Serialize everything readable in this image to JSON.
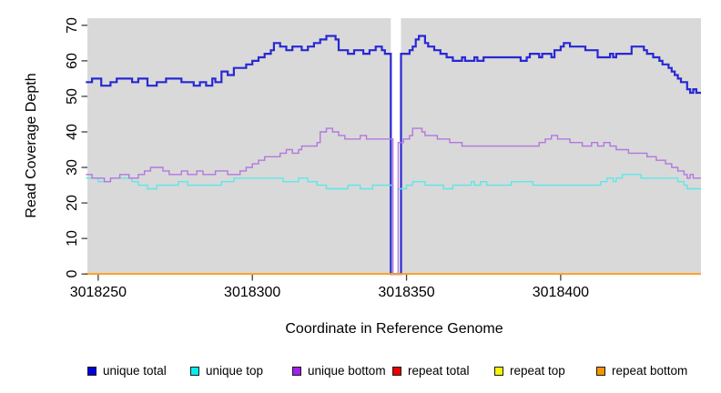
{
  "figure": {
    "background_color": "#ffffff",
    "plot_background_color": "#d9d9d9",
    "masked_region_color": "#ffffff",
    "tick_color": "#404040"
  },
  "legend": [
    {
      "label": "unique total",
      "swatch_color": "#0000dd",
      "line_color": "#2828d4"
    },
    {
      "label": "unique top",
      "swatch_color": "#00eeee",
      "line_color": "#5ce8e8"
    },
    {
      "label": "unique bottom",
      "swatch_color": "#a020f0",
      "line_color": "#b278de"
    },
    {
      "label": "repeat total",
      "swatch_color": "#ee0000",
      "line_color": "#dd0000"
    },
    {
      "label": "repeat top",
      "swatch_color": "#f5f500",
      "line_color": "#f0f000"
    },
    {
      "label": "repeat bottom",
      "swatch_color": "#f59600",
      "line_color": "#ffa024"
    }
  ],
  "chart_data": {
    "type": "line",
    "subtype": "step-coverage",
    "title": "",
    "xlabel": "Coordinate in Reference Genome",
    "ylabel": "Read Coverage Depth",
    "x_range": [
      3018246.5,
      3018445.5
    ],
    "ylim": [
      0,
      72
    ],
    "grid": false,
    "legend_position": "bottom",
    "plot_background": "#d9d9d9",
    "masked_region": {
      "start": 3018344.9,
      "end": 3018348.2,
      "color": "#ffffff"
    },
    "x_ticks": [
      {
        "value": 3018250,
        "label": "3018250"
      },
      {
        "value": 3018300,
        "label": "3018300"
      },
      {
        "value": 3018350,
        "label": "3018350"
      },
      {
        "value": 3018400,
        "label": "3018400"
      }
    ],
    "y_ticks": [
      {
        "value": 0,
        "label": "0"
      },
      {
        "value": 10,
        "label": "10"
      },
      {
        "value": 20,
        "label": "20"
      },
      {
        "value": 30,
        "label": "30"
      },
      {
        "value": 40,
        "label": "40"
      },
      {
        "value": 50,
        "label": "50"
      },
      {
        "value": 60,
        "label": "60"
      },
      {
        "value": 70,
        "label": "70"
      }
    ],
    "series": [
      {
        "name": "unique total",
        "color": "#2828d4",
        "steps": [
          [
            3018246,
            54
          ],
          [
            3018248,
            55
          ],
          [
            3018251,
            53
          ],
          [
            3018254,
            54
          ],
          [
            3018256,
            55
          ],
          [
            3018261,
            54
          ],
          [
            3018263,
            55
          ],
          [
            3018266,
            53
          ],
          [
            3018269,
            54
          ],
          [
            3018272,
            55
          ],
          [
            3018277,
            54
          ],
          [
            3018281,
            53
          ],
          [
            3018283,
            54
          ],
          [
            3018285,
            53
          ],
          [
            3018287,
            55
          ],
          [
            3018288,
            54
          ],
          [
            3018290,
            57
          ],
          [
            3018292,
            56
          ],
          [
            3018294,
            58
          ],
          [
            3018298,
            59
          ],
          [
            3018300,
            60
          ],
          [
            3018302,
            61
          ],
          [
            3018304,
            62
          ],
          [
            3018306,
            63
          ],
          [
            3018307,
            65
          ],
          [
            3018309,
            64
          ],
          [
            3018311,
            63
          ],
          [
            3018313,
            64
          ],
          [
            3018316,
            63
          ],
          [
            3018318,
            64
          ],
          [
            3018320,
            65
          ],
          [
            3018322,
            66
          ],
          [
            3018324,
            67
          ],
          [
            3018327,
            66
          ],
          [
            3018328,
            63
          ],
          [
            3018331,
            62
          ],
          [
            3018333,
            63
          ],
          [
            3018336,
            62
          ],
          [
            3018338,
            63
          ],
          [
            3018340,
            64
          ],
          [
            3018342,
            63
          ],
          [
            3018343,
            62
          ],
          [
            3018344.9,
            0
          ],
          [
            3018348.2,
            62
          ],
          [
            3018351,
            63
          ],
          [
            3018352,
            64
          ],
          [
            3018353,
            66
          ],
          [
            3018354,
            67
          ],
          [
            3018356,
            65
          ],
          [
            3018357,
            64
          ],
          [
            3018359,
            63
          ],
          [
            3018361,
            62
          ],
          [
            3018363,
            61
          ],
          [
            3018365,
            60
          ],
          [
            3018368,
            61
          ],
          [
            3018369,
            60
          ],
          [
            3018372,
            61
          ],
          [
            3018373,
            60
          ],
          [
            3018375,
            61
          ],
          [
            3018387,
            60
          ],
          [
            3018389,
            61
          ],
          [
            3018390,
            62
          ],
          [
            3018393,
            61
          ],
          [
            3018394,
            62
          ],
          [
            3018397,
            61
          ],
          [
            3018398,
            63
          ],
          [
            3018400,
            64
          ],
          [
            3018401,
            65
          ],
          [
            3018403,
            64
          ],
          [
            3018408,
            63
          ],
          [
            3018412,
            61
          ],
          [
            3018416,
            62
          ],
          [
            3018417,
            61
          ],
          [
            3018418,
            62
          ],
          [
            3018423,
            64
          ],
          [
            3018427,
            63
          ],
          [
            3018428,
            62
          ],
          [
            3018430,
            61
          ],
          [
            3018432,
            60
          ],
          [
            3018433,
            59
          ],
          [
            3018435,
            58
          ],
          [
            3018436,
            57
          ],
          [
            3018437,
            56
          ],
          [
            3018438,
            55
          ],
          [
            3018439,
            54
          ],
          [
            3018441,
            52
          ],
          [
            3018442,
            51
          ],
          [
            3018443,
            52
          ],
          [
            3018444,
            51
          ]
        ]
      },
      {
        "name": "unique top",
        "color": "#5ce8e8",
        "steps": [
          [
            3018246,
            27
          ],
          [
            3018250,
            26
          ],
          [
            3018254,
            27
          ],
          [
            3018261,
            26
          ],
          [
            3018263,
            25
          ],
          [
            3018266,
            24
          ],
          [
            3018269,
            25
          ],
          [
            3018276,
            26
          ],
          [
            3018279,
            25
          ],
          [
            3018290,
            26
          ],
          [
            3018294,
            27
          ],
          [
            3018310,
            26
          ],
          [
            3018315,
            27
          ],
          [
            3018318,
            26
          ],
          [
            3018321,
            25
          ],
          [
            3018324,
            24
          ],
          [
            3018331,
            25
          ],
          [
            3018335,
            24
          ],
          [
            3018339,
            25
          ],
          [
            3018345.6,
            0
          ],
          [
            3018347.3,
            24
          ],
          [
            3018350,
            25
          ],
          [
            3018352,
            26
          ],
          [
            3018356,
            25
          ],
          [
            3018362,
            24
          ],
          [
            3018365,
            25
          ],
          [
            3018371,
            26
          ],
          [
            3018372,
            25
          ],
          [
            3018374,
            26
          ],
          [
            3018376,
            25
          ],
          [
            3018384,
            26
          ],
          [
            3018391,
            25
          ],
          [
            3018413,
            26
          ],
          [
            3018415,
            27
          ],
          [
            3018417,
            26
          ],
          [
            3018418,
            27
          ],
          [
            3018420,
            28
          ],
          [
            3018426,
            27
          ],
          [
            3018438,
            26
          ],
          [
            3018440,
            25
          ],
          [
            3018441,
            24
          ]
        ]
      },
      {
        "name": "unique bottom",
        "color": "#b278de",
        "steps": [
          [
            3018246,
            28
          ],
          [
            3018248,
            27
          ],
          [
            3018252,
            26
          ],
          [
            3018254,
            27
          ],
          [
            3018257,
            28
          ],
          [
            3018260,
            27
          ],
          [
            3018263,
            28
          ],
          [
            3018265,
            29
          ],
          [
            3018267,
            30
          ],
          [
            3018271,
            29
          ],
          [
            3018273,
            28
          ],
          [
            3018277,
            29
          ],
          [
            3018279,
            28
          ],
          [
            3018282,
            29
          ],
          [
            3018284,
            28
          ],
          [
            3018288,
            29
          ],
          [
            3018292,
            28
          ],
          [
            3018296,
            29
          ],
          [
            3018298,
            30
          ],
          [
            3018300,
            31
          ],
          [
            3018302,
            32
          ],
          [
            3018304,
            33
          ],
          [
            3018309,
            34
          ],
          [
            3018311,
            35
          ],
          [
            3018313,
            34
          ],
          [
            3018315,
            35
          ],
          [
            3018316,
            36
          ],
          [
            3018321,
            37
          ],
          [
            3018322,
            40
          ],
          [
            3018324,
            41
          ],
          [
            3018326,
            40
          ],
          [
            3018328,
            39
          ],
          [
            3018330,
            38
          ],
          [
            3018335,
            39
          ],
          [
            3018337,
            38
          ],
          [
            3018345.6,
            0
          ],
          [
            3018347.3,
            37
          ],
          [
            3018349,
            38
          ],
          [
            3018351,
            39
          ],
          [
            3018352,
            41
          ],
          [
            3018355,
            40
          ],
          [
            3018356,
            39
          ],
          [
            3018360,
            38
          ],
          [
            3018364,
            37
          ],
          [
            3018368,
            36
          ],
          [
            3018393,
            37
          ],
          [
            3018395,
            38
          ],
          [
            3018397,
            39
          ],
          [
            3018399,
            38
          ],
          [
            3018403,
            37
          ],
          [
            3018407,
            36
          ],
          [
            3018410,
            37
          ],
          [
            3018412,
            36
          ],
          [
            3018414,
            37
          ],
          [
            3018416,
            36
          ],
          [
            3018418,
            35
          ],
          [
            3018422,
            34
          ],
          [
            3018428,
            33
          ],
          [
            3018431,
            32
          ],
          [
            3018434,
            31
          ],
          [
            3018436,
            30
          ],
          [
            3018438,
            29
          ],
          [
            3018440,
            28
          ],
          [
            3018441,
            27
          ],
          [
            3018442,
            28
          ],
          [
            3018443,
            27
          ]
        ]
      },
      {
        "name": "repeat total",
        "color": "#dd0000",
        "steps": [
          [
            3018246,
            0
          ]
        ]
      },
      {
        "name": "repeat top",
        "color": "#f0f000",
        "steps": [
          [
            3018246,
            0
          ]
        ]
      },
      {
        "name": "repeat bottom",
        "color": "#ffa024",
        "steps": [
          [
            3018246,
            0
          ]
        ]
      }
    ]
  }
}
